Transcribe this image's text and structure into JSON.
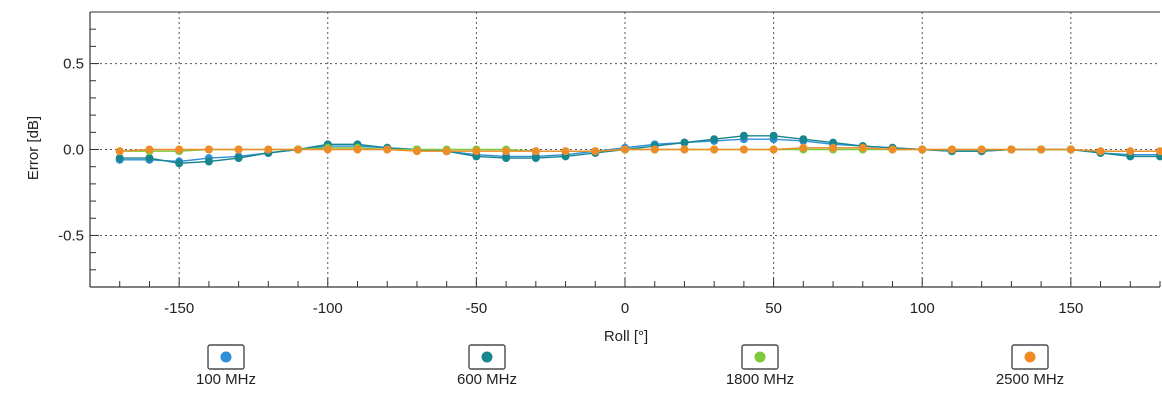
{
  "chart_data": {
    "type": "line",
    "title": "",
    "xlabel": "Roll [°]",
    "ylabel": "Error [dB]",
    "xlim": [
      -180,
      180
    ],
    "ylim": [
      -0.8,
      0.8
    ],
    "xticks": [
      -150,
      -100,
      -50,
      0,
      50,
      100,
      150
    ],
    "yticks": [
      0.5,
      0.0,
      -0.5
    ],
    "ytick_labels": [
      "0.5",
      "0.0",
      "-0.5"
    ],
    "grid": true,
    "legend_position": "bottom",
    "x": [
      -170,
      -160,
      -150,
      -140,
      -130,
      -120,
      -110,
      -100,
      -90,
      -80,
      -70,
      -60,
      -50,
      -40,
      -30,
      -20,
      -10,
      0,
      10,
      20,
      30,
      40,
      50,
      60,
      70,
      80,
      90,
      100,
      110,
      120,
      130,
      140,
      150,
      160,
      170,
      180
    ],
    "series": [
      {
        "name": "100 MHz",
        "color": "#2f8fd8",
        "values": [
          -0.06,
          -0.06,
          -0.07,
          -0.05,
          -0.04,
          -0.02,
          0.0,
          0.02,
          0.02,
          0.01,
          0.0,
          -0.01,
          -0.03,
          -0.04,
          -0.04,
          -0.03,
          -0.01,
          0.01,
          0.03,
          0.04,
          0.05,
          0.06,
          0.06,
          0.05,
          0.03,
          0.02,
          0.01,
          0.0,
          -0.01,
          -0.01,
          0.0,
          0.0,
          0.0,
          -0.02,
          -0.03,
          -0.03
        ]
      },
      {
        "name": "600 MHz",
        "color": "#17868e",
        "values": [
          -0.05,
          -0.05,
          -0.08,
          -0.07,
          -0.05,
          -0.02,
          0.0,
          0.03,
          0.03,
          0.01,
          0.0,
          -0.01,
          -0.04,
          -0.05,
          -0.05,
          -0.04,
          -0.02,
          0.0,
          0.02,
          0.04,
          0.06,
          0.08,
          0.08,
          0.06,
          0.04,
          0.02,
          0.01,
          0.0,
          -0.01,
          -0.01,
          0.0,
          0.0,
          0.0,
          -0.02,
          -0.04,
          -0.04
        ]
      },
      {
        "name": "1800 MHz",
        "color": "#7ec83c",
        "values": [
          -0.01,
          -0.01,
          -0.01,
          0.0,
          0.0,
          0.0,
          0.0,
          0.01,
          0.01,
          0.0,
          0.0,
          0.0,
          0.0,
          0.0,
          -0.01,
          -0.01,
          -0.01,
          0.0,
          0.0,
          0.0,
          0.0,
          0.0,
          0.0,
          0.0,
          0.0,
          0.0,
          0.0,
          0.0,
          0.0,
          0.0,
          0.0,
          0.0,
          0.0,
          -0.01,
          -0.01,
          -0.01
        ]
      },
      {
        "name": "2500 MHz",
        "color": "#f08c28",
        "values": [
          -0.01,
          0.0,
          0.0,
          0.0,
          0.0,
          0.0,
          0.0,
          0.0,
          0.0,
          0.0,
          -0.01,
          -0.01,
          -0.01,
          -0.01,
          -0.01,
          -0.01,
          -0.01,
          0.0,
          0.0,
          0.0,
          0.0,
          0.0,
          0.0,
          0.01,
          0.01,
          0.01,
          0.0,
          0.0,
          0.0,
          0.0,
          0.0,
          0.0,
          0.0,
          -0.01,
          -0.01,
          -0.01
        ]
      }
    ]
  }
}
